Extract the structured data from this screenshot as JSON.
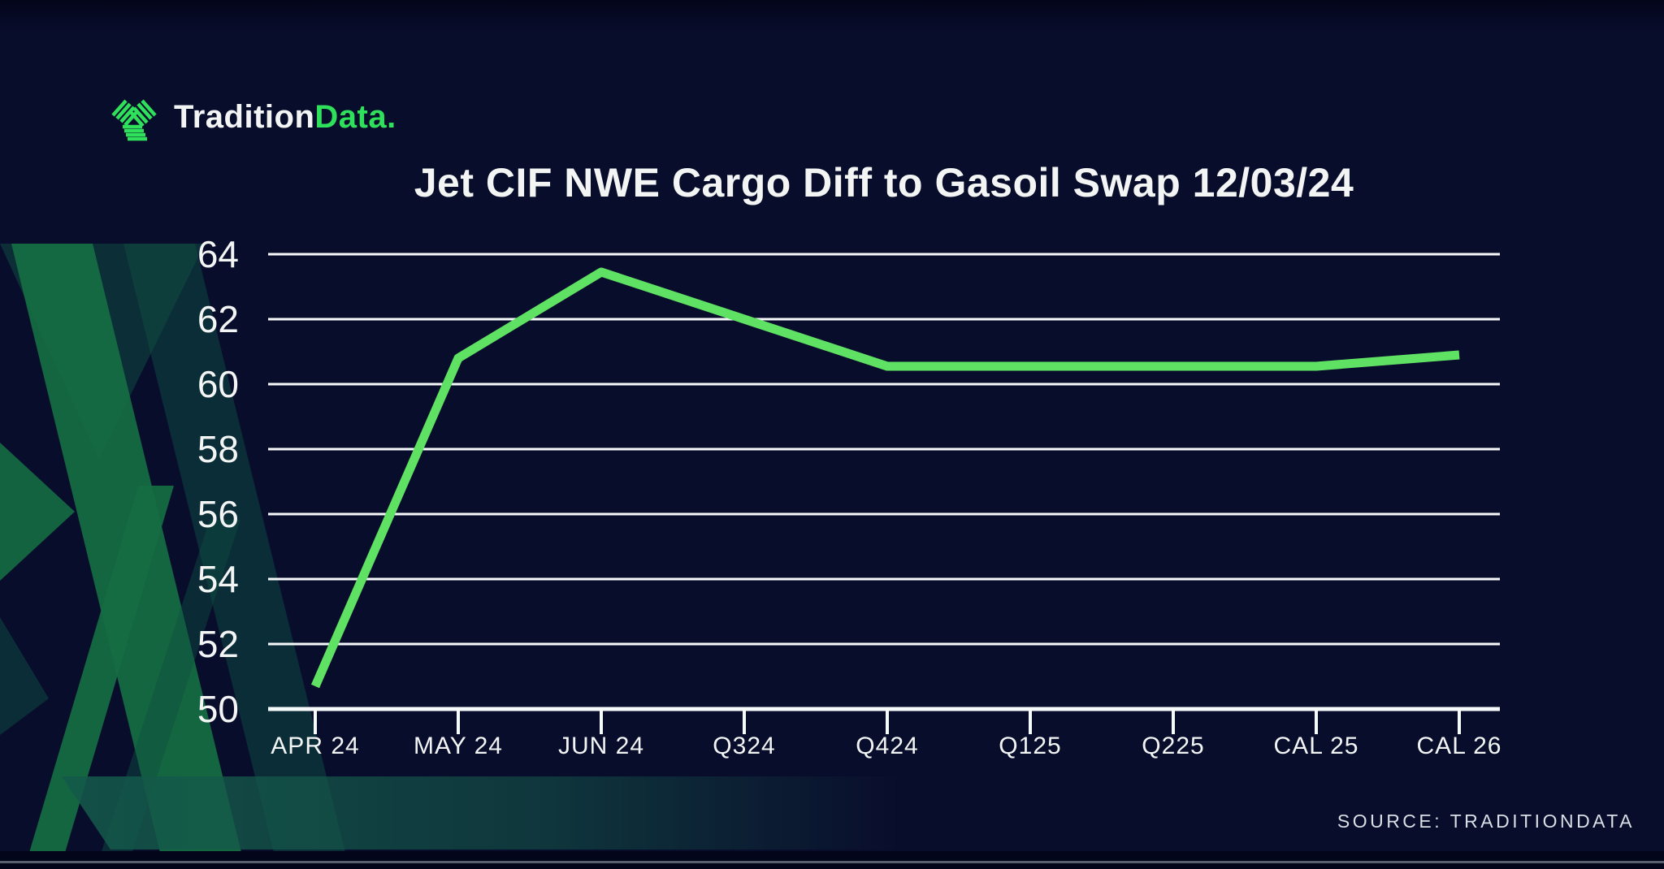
{
  "logo": {
    "brand_primary": "Tradition",
    "brand_accent": "Data."
  },
  "chart_data": {
    "type": "line",
    "title": "Jet CIF NWE Cargo Diff to Gasoil Swap 12/03/24",
    "categories": [
      "APR 24",
      "MAY 24",
      "JUN 24",
      "Q324",
      "Q424",
      "Q125",
      "Q225",
      "CAL 25",
      "CAL 26"
    ],
    "series": [
      {
        "name": "Jet CIF NWE Cargo Diff to Gasoil Swap",
        "values": [
          50.7,
          60.8,
          63.45,
          62.0,
          60.55,
          60.55,
          60.55,
          60.55,
          60.9
        ]
      }
    ],
    "xlabel": "",
    "ylabel": "",
    "ylim": [
      50,
      64
    ],
    "yticks": [
      64,
      62,
      60,
      58,
      56,
      54,
      52,
      50
    ],
    "grid": "horizontal",
    "legend": "none"
  },
  "source": {
    "label": "SOURCE: TRADITIONDATA"
  },
  "colors": {
    "background": "#090D2C",
    "edge_band": "#03051A",
    "grid": "#F7FAFB",
    "text": "#F2F5F4",
    "line": "#5FE263",
    "logo_green": "#2FE05B",
    "chevron_bright": "#156B42",
    "chevron_dark": "#0E4D41",
    "band": "#14584A",
    "source_text": "#D9DFE4"
  }
}
